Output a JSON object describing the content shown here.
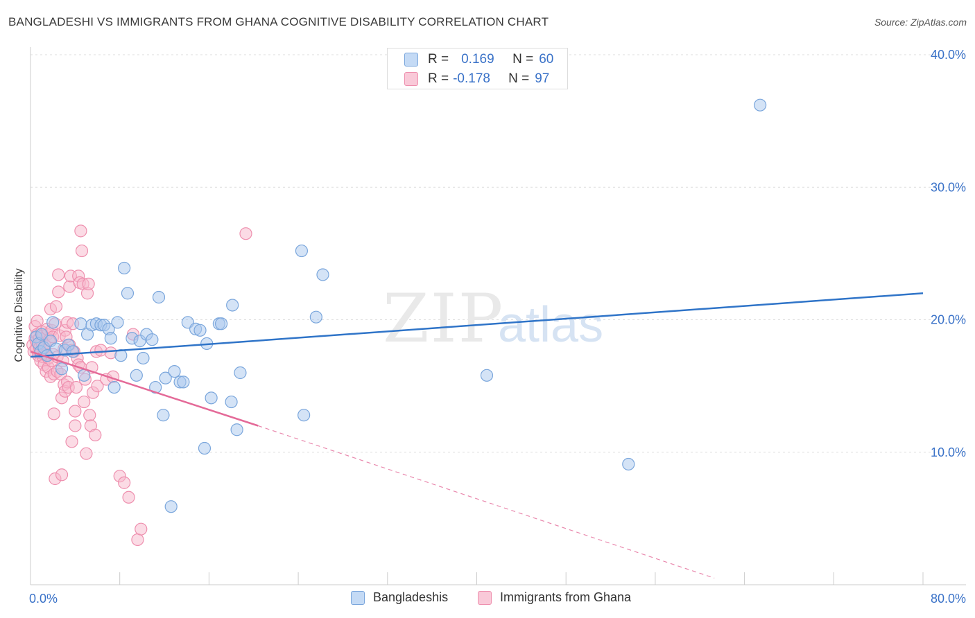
{
  "title": "BANGLADESHI VS IMMIGRANTS FROM GHANA COGNITIVE DISABILITY CORRELATION CHART",
  "source": "Source: ZipAtlas.com",
  "watermark": {
    "zip": "ZIP",
    "atlas": "atlas"
  },
  "legend_top": {
    "rows": [
      {
        "r_label": "R =",
        "r_value": "0.169",
        "n_label": "N =",
        "n_value": "60"
      },
      {
        "r_label": "R =",
        "r_value": "-0.178",
        "n_label": "N =",
        "n_value": "97"
      }
    ]
  },
  "legend_bottom": {
    "items": [
      {
        "label": "Bangladeshis"
      },
      {
        "label": "Immigrants from Ghana"
      }
    ]
  },
  "colors": {
    "blue_fill": "#aac8ee",
    "blue_stroke": "#7aa6dc",
    "blue_line": "#2f74c8",
    "pink_fill": "#f7b8cc",
    "pink_stroke": "#ee8fae",
    "pink_line": "#e46a98",
    "tick_text": "#3a72c8",
    "grid": "#dddddd"
  },
  "chart_data": {
    "type": "scatter",
    "title": "BANGLADESHI VS IMMIGRANTS FROM GHANA COGNITIVE DISABILITY CORRELATION CHART",
    "xlabel": "",
    "ylabel": "Cognitive Disability",
    "xlim": [
      0,
      80
    ],
    "ylim": [
      0,
      40
    ],
    "x_tick_labels": [
      {
        "value": 0,
        "label": "0.0%"
      },
      {
        "value": 80,
        "label": "80.0%"
      }
    ],
    "y_tick_labels": [
      {
        "value": 10,
        "label": "10.0%"
      },
      {
        "value": 20,
        "label": "20.0%"
      },
      {
        "value": 30,
        "label": "30.0%"
      },
      {
        "value": 40,
        "label": "40.0%"
      }
    ],
    "series": [
      {
        "name": "Bangladeshis",
        "r": 0.169,
        "n": 60,
        "trend": {
          "x": [
            0,
            80
          ],
          "y": [
            17.2,
            22.0
          ]
        },
        "points": [
          [
            0.5,
            18.7
          ],
          [
            0.7,
            18.2
          ],
          [
            0.9,
            17.6
          ],
          [
            1.0,
            18.9
          ],
          [
            1.2,
            17.9
          ],
          [
            1.5,
            17.3
          ],
          [
            1.8,
            18.4
          ],
          [
            2.0,
            19.8
          ],
          [
            2.3,
            17.8
          ],
          [
            2.8,
            16.3
          ],
          [
            3.1,
            17.7
          ],
          [
            3.4,
            18.1
          ],
          [
            3.8,
            17.6
          ],
          [
            4.5,
            19.7
          ],
          [
            4.8,
            15.8
          ],
          [
            5.1,
            18.9
          ],
          [
            5.5,
            19.6
          ],
          [
            5.9,
            19.7
          ],
          [
            6.3,
            19.6
          ],
          [
            6.6,
            19.6
          ],
          [
            7.0,
            19.3
          ],
          [
            7.2,
            18.6
          ],
          [
            7.5,
            14.9
          ],
          [
            7.8,
            19.8
          ],
          [
            8.1,
            17.3
          ],
          [
            8.4,
            23.9
          ],
          [
            8.7,
            22.0
          ],
          [
            9.1,
            18.6
          ],
          [
            9.5,
            15.8
          ],
          [
            9.8,
            18.4
          ],
          [
            10.1,
            17.1
          ],
          [
            10.4,
            18.9
          ],
          [
            10.9,
            18.5
          ],
          [
            11.2,
            14.9
          ],
          [
            11.5,
            21.7
          ],
          [
            11.9,
            12.8
          ],
          [
            12.1,
            15.6
          ],
          [
            12.6,
            5.9
          ],
          [
            12.9,
            16.1
          ],
          [
            13.4,
            15.3
          ],
          [
            13.7,
            15.3
          ],
          [
            14.1,
            19.8
          ],
          [
            14.8,
            19.3
          ],
          [
            15.2,
            19.2
          ],
          [
            15.6,
            10.3
          ],
          [
            15.8,
            18.2
          ],
          [
            16.2,
            14.1
          ],
          [
            16.9,
            19.7
          ],
          [
            17.1,
            19.7
          ],
          [
            18.0,
            13.8
          ],
          [
            18.5,
            11.7
          ],
          [
            18.8,
            16.0
          ],
          [
            18.1,
            21.1
          ],
          [
            24.3,
            25.2
          ],
          [
            24.5,
            12.8
          ],
          [
            25.6,
            20.2
          ],
          [
            26.2,
            23.4
          ],
          [
            40.9,
            15.8
          ],
          [
            53.6,
            9.1
          ],
          [
            65.4,
            36.2
          ]
        ]
      },
      {
        "name": "Immigrants from Ghana",
        "r": -0.178,
        "n": 97,
        "trend": {
          "x": [
            0,
            20.4
          ],
          "y": [
            17.6,
            12.0
          ]
        },
        "trend_dashed": {
          "x": [
            20.4,
            61.3
          ],
          "y": [
            12.0,
            0.5
          ]
        },
        "points": [
          [
            0.2,
            18.1
          ],
          [
            0.3,
            17.6
          ],
          [
            0.4,
            18.6
          ],
          [
            0.4,
            19.5
          ],
          [
            0.5,
            17.8
          ],
          [
            0.5,
            18.4
          ],
          [
            0.6,
            18.9
          ],
          [
            0.6,
            19.9
          ],
          [
            0.7,
            17.3
          ],
          [
            0.7,
            18.2
          ],
          [
            0.8,
            17.9
          ],
          [
            0.8,
            18.6
          ],
          [
            0.9,
            16.9
          ],
          [
            0.9,
            17.5
          ],
          [
            1.0,
            18.3
          ],
          [
            1.0,
            19.1
          ],
          [
            1.1,
            17.2
          ],
          [
            1.1,
            18.8
          ],
          [
            1.2,
            16.6
          ],
          [
            1.2,
            17.7
          ],
          [
            1.3,
            18.1
          ],
          [
            1.4,
            16.1
          ],
          [
            1.4,
            17.4
          ],
          [
            1.5,
            18.9
          ],
          [
            1.5,
            19.3
          ],
          [
            1.6,
            16.4
          ],
          [
            1.6,
            17.1
          ],
          [
            1.7,
            18.5
          ],
          [
            1.8,
            15.7
          ],
          [
            1.8,
            20.8
          ],
          [
            1.9,
            19.2
          ],
          [
            1.9,
            16.9
          ],
          [
            2.0,
            17.4
          ],
          [
            2.0,
            18.7
          ],
          [
            2.1,
            12.9
          ],
          [
            2.1,
            15.9
          ],
          [
            2.2,
            19.7
          ],
          [
            2.2,
            8.0
          ],
          [
            2.3,
            21.0
          ],
          [
            2.4,
            17.2
          ],
          [
            2.4,
            16.1
          ],
          [
            2.5,
            22.1
          ],
          [
            2.5,
            23.4
          ],
          [
            2.6,
            18.8
          ],
          [
            2.7,
            15.9
          ],
          [
            2.8,
            14.1
          ],
          [
            2.8,
            8.3
          ],
          [
            2.9,
            16.9
          ],
          [
            3.0,
            15.1
          ],
          [
            3.0,
            17.8
          ],
          [
            3.1,
            19.2
          ],
          [
            3.1,
            14.6
          ],
          [
            3.2,
            18.7
          ],
          [
            3.3,
            15.3
          ],
          [
            3.3,
            19.8
          ],
          [
            3.4,
            14.9
          ],
          [
            3.5,
            22.5
          ],
          [
            3.5,
            18.1
          ],
          [
            3.6,
            23.3
          ],
          [
            3.7,
            17.7
          ],
          [
            3.7,
            10.8
          ],
          [
            3.8,
            19.7
          ],
          [
            3.9,
            17.6
          ],
          [
            4.0,
            12.0
          ],
          [
            4.0,
            13.1
          ],
          [
            4.1,
            14.9
          ],
          [
            4.2,
            17.1
          ],
          [
            4.3,
            16.6
          ],
          [
            4.3,
            23.3
          ],
          [
            4.4,
            22.8
          ],
          [
            4.5,
            26.7
          ],
          [
            4.5,
            16.4
          ],
          [
            4.6,
            25.2
          ],
          [
            4.7,
            22.7
          ],
          [
            4.8,
            13.8
          ],
          [
            4.9,
            15.5
          ],
          [
            5.0,
            9.9
          ],
          [
            5.1,
            22.0
          ],
          [
            5.2,
            22.7
          ],
          [
            5.3,
            12.8
          ],
          [
            5.4,
            12.0
          ],
          [
            5.5,
            16.4
          ],
          [
            5.6,
            14.5
          ],
          [
            5.8,
            11.3
          ],
          [
            5.9,
            17.6
          ],
          [
            6.0,
            15.0
          ],
          [
            6.3,
            17.7
          ],
          [
            6.8,
            15.5
          ],
          [
            7.2,
            17.5
          ],
          [
            7.4,
            15.7
          ],
          [
            8.0,
            8.2
          ],
          [
            8.4,
            7.7
          ],
          [
            8.8,
            6.6
          ],
          [
            9.2,
            18.9
          ],
          [
            9.6,
            3.4
          ],
          [
            9.9,
            4.2
          ],
          [
            19.3,
            26.5
          ]
        ]
      }
    ]
  }
}
